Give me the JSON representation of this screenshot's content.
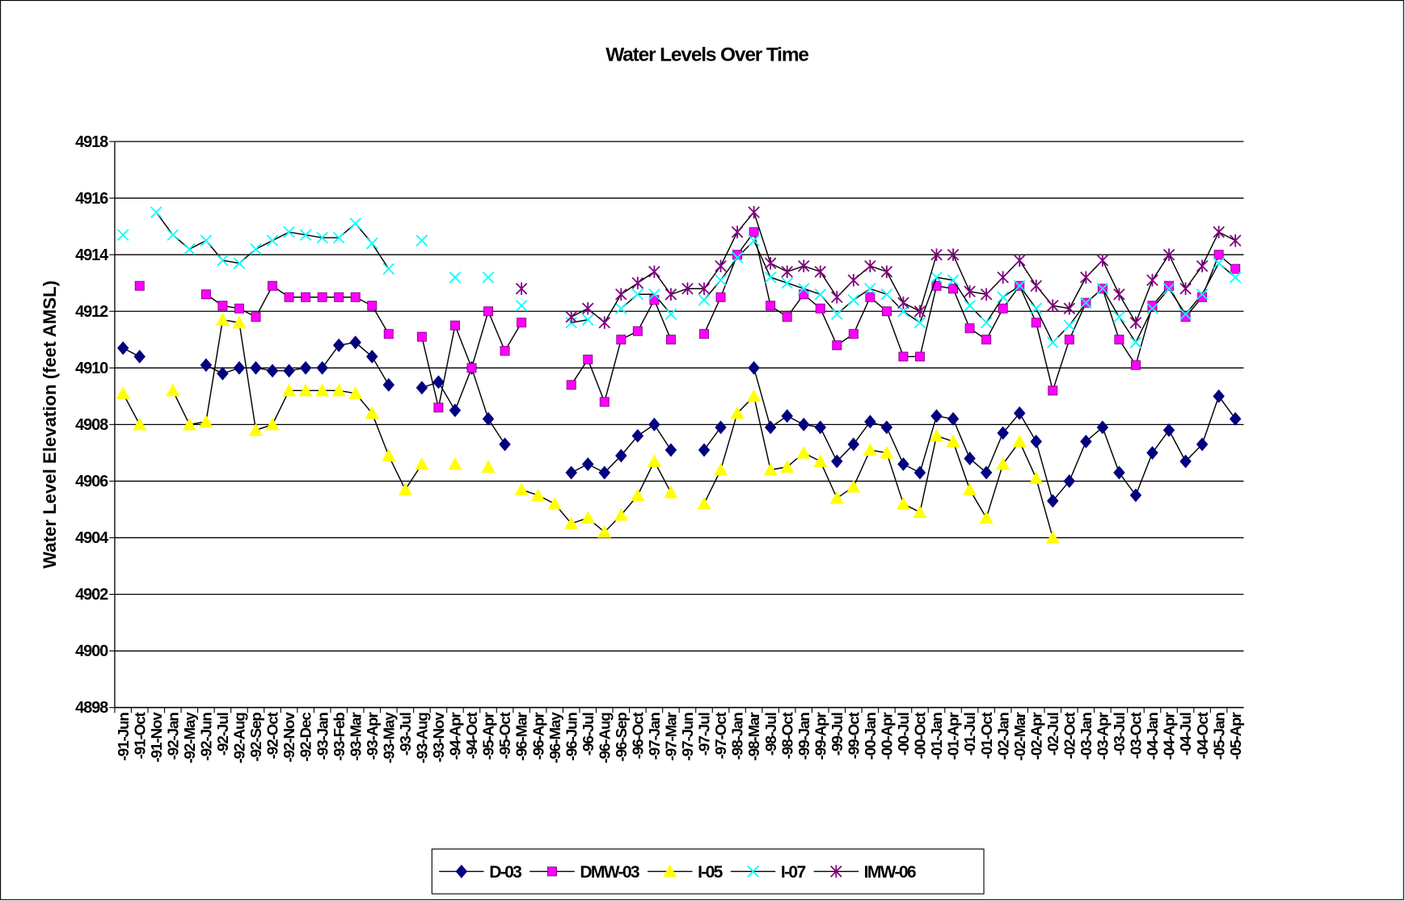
{
  "chart_data": {
    "type": "line",
    "title": "Water Levels Over Time",
    "y_label": "Water Level Elevation (feet AMSL)",
    "categories": [
      "-91-Jun",
      "-91-Oct",
      "-91-Nov",
      "-92-Jan",
      "-92-May",
      "-92-Jun",
      "-92-Jul",
      "-92-Aug",
      "-92-Sep",
      "-92-Oct",
      "-92-Nov",
      "-92-Dec",
      "-93-Jan",
      "-93-Feb",
      "-93-Mar",
      "-93-Apr",
      "-93-May",
      "-93-Jul",
      "-93-Aug",
      "-93-Nov",
      "-94-Apr",
      "-94-Oct",
      "-95-Apr",
      "-95-Oct",
      "-96-Mar",
      "-96-Apr",
      "-96-May",
      "-96-Jun",
      "-96-Jul",
      "-96-Aug",
      "-96-Sep",
      "-96-Oct",
      "-97-Jan",
      "-97-Mar",
      "-97-Jun",
      "-97-Jul",
      "-97-Oct",
      "-98-Jan",
      "-98-Mar",
      "-98-Jul",
      "-98-Oct",
      "-99-Jan",
      "-99-Apr",
      "-99-Jul",
      "-99-Oct",
      "-00-Jan",
      "-00-Apr",
      "-00-Jul",
      "-00-Oct",
      "-01-Jan",
      "-01-Apr",
      "-01-Jul",
      "-01-Oct",
      "-02-Jan",
      "-02-Mar",
      "-02-Apr",
      "-02-Jul",
      "-02-Oct",
      "-03-Jan",
      "-03-Apr",
      "-03-Jul",
      "-03-Oct",
      "-04-Jan",
      "-04-Apr",
      "-04-Jul",
      "-04-Oct",
      "-05-Jan",
      "-05-Apr"
    ],
    "series": [
      {
        "name": "D-03",
        "color": "#000080",
        "marker": "diamond",
        "values": [
          4910.7,
          4910.4,
          null,
          null,
          null,
          4910.1,
          4909.8,
          4910.0,
          4910.0,
          4909.9,
          4909.9,
          4910.0,
          4910.0,
          4910.8,
          4910.9,
          4910.4,
          4909.4,
          null,
          4909.3,
          4909.5,
          4908.5,
          4910.0,
          4908.2,
          4907.3,
          null,
          null,
          null,
          4906.3,
          4906.6,
          4906.3,
          4906.9,
          4907.6,
          4908.0,
          4907.1,
          null,
          4907.1,
          4907.9,
          null,
          4910.0,
          4907.9,
          4908.3,
          4908.0,
          4907.9,
          4906.7,
          4907.3,
          4908.1,
          4907.9,
          4906.6,
          4906.3,
          4908.3,
          4908.2,
          4906.8,
          4906.3,
          4907.7,
          4908.4,
          4907.4,
          4905.3,
          4906.0,
          4907.4,
          4907.9,
          4906.3,
          4905.5,
          4907.0,
          4907.8,
          4906.7,
          4907.3,
          4909.0,
          4908.2
        ]
      },
      {
        "name": "DMW-03",
        "color": "#FF00FF",
        "marker": "square",
        "values": [
          null,
          4912.9,
          null,
          null,
          null,
          4912.6,
          4912.2,
          4912.1,
          4911.8,
          4912.9,
          4912.5,
          4912.5,
          4912.5,
          4912.5,
          4912.5,
          4912.2,
          4911.2,
          null,
          4911.1,
          4908.6,
          4911.5,
          4910.0,
          4912.0,
          4910.6,
          4911.6,
          null,
          null,
          4909.4,
          4910.3,
          4908.8,
          4911.0,
          4911.3,
          4912.4,
          4911.0,
          null,
          4911.2,
          4912.5,
          4914.0,
          4914.8,
          4912.2,
          4911.8,
          4912.6,
          4912.1,
          4910.8,
          4911.2,
          4912.5,
          4912.0,
          4910.4,
          4910.4,
          4912.9,
          4912.8,
          4911.4,
          4911.0,
          4912.1,
          4912.9,
          4911.6,
          4909.2,
          4911.0,
          4912.3,
          4912.8,
          4911.0,
          4910.1,
          4912.2,
          4912.9,
          4911.8,
          4912.5,
          4914.0,
          4913.5
        ]
      },
      {
        "name": "I-05",
        "color": "#FFFF00",
        "marker": "triangle",
        "values": [
          4909.1,
          4908.0,
          null,
          4909.2,
          4908.0,
          4908.1,
          4911.7,
          4911.6,
          4907.8,
          4908.0,
          4909.2,
          4909.2,
          4909.2,
          4909.2,
          4909.1,
          4908.4,
          4906.9,
          4905.7,
          4906.6,
          null,
          4906.6,
          null,
          4906.5,
          null,
          4905.7,
          4905.5,
          4905.2,
          4904.5,
          4904.7,
          4904.2,
          4904.8,
          4905.5,
          4906.7,
          4905.6,
          null,
          4905.2,
          4906.4,
          4908.4,
          4909.0,
          4906.4,
          4906.5,
          4907.0,
          4906.7,
          4905.4,
          4905.8,
          4907.1,
          4907.0,
          4905.2,
          4904.9,
          4907.6,
          4907.4,
          4905.7,
          4904.7,
          4906.6,
          4907.4,
          4906.1,
          4904.0,
          null,
          null,
          null,
          null,
          null,
          null,
          null,
          null,
          null,
          null,
          null
        ]
      },
      {
        "name": "I-07",
        "color": "#00FFFF",
        "marker": "x",
        "values": [
          4914.7,
          null,
          4915.5,
          4914.7,
          4914.2,
          4914.5,
          4913.8,
          4913.7,
          4914.2,
          4914.5,
          4914.8,
          4914.7,
          4914.6,
          4914.6,
          4915.1,
          4914.4,
          4913.5,
          null,
          4914.5,
          null,
          4913.2,
          null,
          4913.2,
          null,
          4912.2,
          null,
          null,
          4911.6,
          4911.7,
          null,
          4912.1,
          4912.6,
          4912.6,
          4911.9,
          null,
          4912.4,
          4913.1,
          4913.9,
          4914.5,
          4913.2,
          4913.0,
          4912.8,
          4912.6,
          4911.9,
          4912.4,
          4912.8,
          4912.6,
          4912.0,
          4911.6,
          4913.2,
          4913.1,
          4912.2,
          4911.6,
          4912.5,
          4912.9,
          4912.1,
          4910.9,
          4911.5,
          4912.3,
          4912.8,
          4911.8,
          4910.9,
          4912.1,
          4912.8,
          4911.9,
          4912.6,
          4913.7,
          4913.2
        ]
      },
      {
        "name": "IMW-06",
        "color": "#800080",
        "marker": "star",
        "values": [
          null,
          null,
          null,
          null,
          null,
          null,
          null,
          null,
          null,
          null,
          null,
          null,
          null,
          null,
          null,
          null,
          null,
          null,
          null,
          null,
          null,
          null,
          null,
          null,
          4912.8,
          null,
          null,
          4911.8,
          4912.1,
          4911.6,
          4912.6,
          4913.0,
          4913.4,
          4912.6,
          4912.8,
          4912.8,
          4913.6,
          4914.8,
          4915.5,
          4913.7,
          4913.4,
          4913.6,
          4913.4,
          4912.5,
          4913.1,
          4913.6,
          4913.4,
          4912.3,
          4912.0,
          4914.0,
          4914.0,
          4912.7,
          4912.6,
          4913.2,
          4913.8,
          4912.9,
          4912.2,
          4912.1,
          4913.2,
          4913.8,
          4912.6,
          4911.6,
          4913.1,
          4914.0,
          4912.8,
          4913.6,
          4914.8,
          4914.5
        ]
      }
    ],
    "line_color": "#000000",
    "ylim": [
      4898,
      4918
    ],
    "yticks": [
      4898,
      4900,
      4902,
      4904,
      4906,
      4908,
      4910,
      4912,
      4914,
      4916,
      4918
    ],
    "grid": true,
    "legend": "bottom"
  }
}
